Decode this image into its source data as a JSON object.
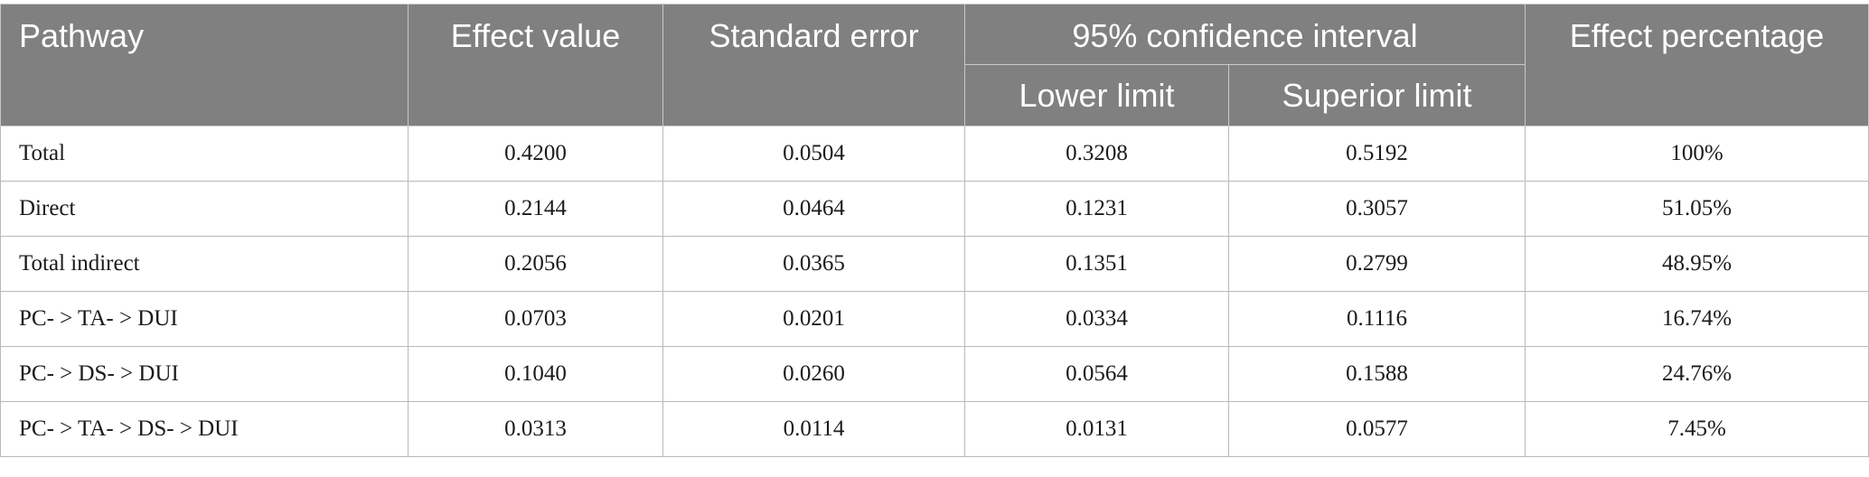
{
  "table": {
    "headers": {
      "pathway": "Pathway",
      "effect_value": "Effect value",
      "standard_error": "Standard error",
      "ci_group": "95% confidence interval",
      "lower_limit": "Lower limit",
      "superior_limit": "Superior limit",
      "effect_percentage": "Effect percentage"
    },
    "rows": [
      [
        "Total",
        "0.4200",
        "0.0504",
        "0.3208",
        "0.5192",
        "100%"
      ],
      [
        "Direct",
        "0.2144",
        "0.0464",
        "0.1231",
        "0.3057",
        "51.05%"
      ],
      [
        "Total indirect",
        "0.2056",
        "0.0365",
        "0.1351",
        "0.2799",
        "48.95%"
      ],
      [
        "PC- > TA- > DUI",
        "0.0703",
        "0.0201",
        "0.0334",
        "0.1116",
        "16.74%"
      ],
      [
        "PC- > DS- > DUI",
        "0.1040",
        "0.0260",
        "0.0564",
        "0.1588",
        "24.76%"
      ],
      [
        "PC- > TA- > DS- > DUI",
        "0.0313",
        "0.0114",
        "0.0131",
        "0.0577",
        "7.45%"
      ]
    ]
  },
  "colors": {
    "header_background": "#808080",
    "header_text": "#ffffff",
    "border": "#b9b9b9"
  }
}
